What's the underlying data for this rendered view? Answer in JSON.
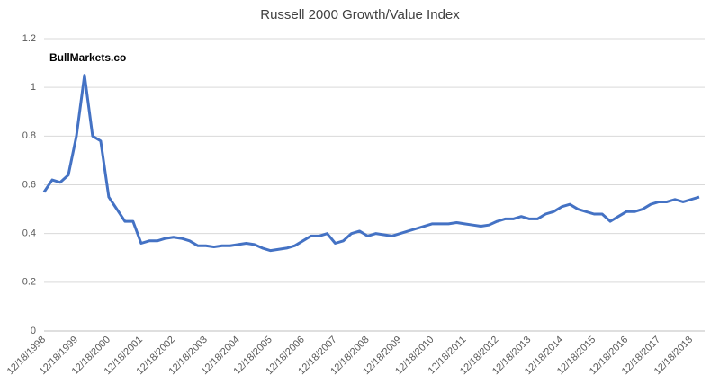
{
  "chart_data": {
    "type": "line",
    "title": "Russell 2000 Growth/Value Index",
    "annotation": "BullMarkets.co",
    "categories": [
      "12/18/1998",
      null,
      null,
      null,
      "12/18/1999",
      null,
      null,
      null,
      "12/18/2000",
      null,
      null,
      null,
      "12/18/2001",
      null,
      null,
      null,
      "12/18/2002",
      null,
      null,
      null,
      "12/18/2003",
      null,
      null,
      null,
      "12/18/2004",
      null,
      null,
      null,
      "12/18/2005",
      null,
      null,
      null,
      "12/18/2006",
      null,
      null,
      null,
      "12/18/2007",
      null,
      null,
      null,
      "12/18/2008",
      null,
      null,
      null,
      "12/18/2009",
      null,
      null,
      null,
      "12/18/2010",
      null,
      null,
      null,
      "12/18/2011",
      null,
      null,
      null,
      "12/18/2012",
      null,
      null,
      null,
      "12/18/2013",
      null,
      null,
      null,
      "12/18/2014",
      null,
      null,
      null,
      "12/18/2015",
      null,
      null,
      null,
      "12/18/2016",
      null,
      null,
      null,
      "12/18/2017",
      null,
      null,
      null,
      "12/18/2018",
      null
    ],
    "values": [
      0.57,
      0.62,
      0.61,
      0.64,
      0.8,
      1.05,
      0.8,
      0.78,
      0.55,
      0.5,
      0.45,
      0.45,
      0.36,
      0.37,
      0.37,
      0.38,
      0.385,
      0.38,
      0.37,
      0.35,
      0.35,
      0.345,
      0.35,
      0.35,
      0.355,
      0.36,
      0.355,
      0.34,
      0.33,
      0.335,
      0.34,
      0.35,
      0.37,
      0.39,
      0.39,
      0.4,
      0.36,
      0.37,
      0.4,
      0.41,
      0.39,
      0.4,
      0.395,
      0.39,
      0.4,
      0.41,
      0.42,
      0.43,
      0.44,
      0.44,
      0.44,
      0.445,
      0.44,
      0.435,
      0.43,
      0.435,
      0.45,
      0.46,
      0.46,
      0.47,
      0.46,
      0.46,
      0.48,
      0.49,
      0.51,
      0.52,
      0.5,
      0.49,
      0.48,
      0.48,
      0.45,
      0.47,
      0.49,
      0.49,
      0.5,
      0.52,
      0.53,
      0.53,
      0.54,
      0.53,
      0.54,
      0.55
    ],
    "color": "#4472c4",
    "ylim": [
      0,
      1.2
    ],
    "yticks": [
      0,
      0.2,
      0.4,
      0.6,
      0.8,
      1,
      1.2
    ],
    "grid": true
  }
}
